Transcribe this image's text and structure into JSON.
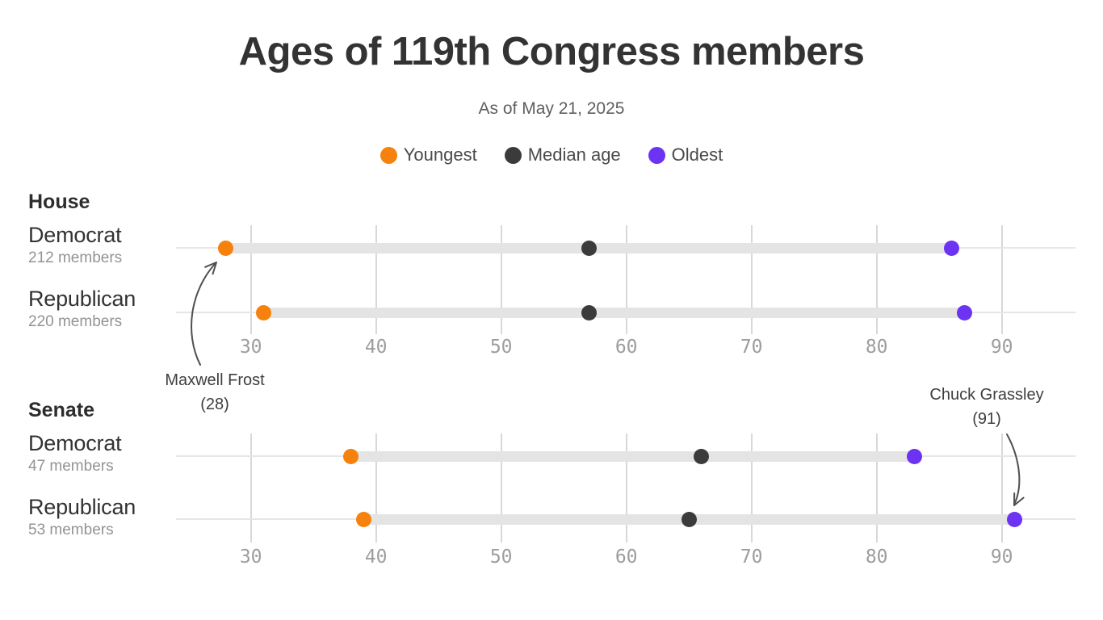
{
  "title": "Ages of 119th Congress members",
  "subtitle": "As of May 21, 2025",
  "legend": {
    "items": [
      {
        "label": "Youngest",
        "color": "#f6810c"
      },
      {
        "label": "Median age",
        "color": "#3b3b3b"
      },
      {
        "label": "Oldest",
        "color": "#6c33f2"
      }
    ]
  },
  "colors": {
    "youngest": "#f6810c",
    "median": "#3b3b3b",
    "oldest": "#6c33f2",
    "band": "#e4e4e4",
    "gridline": "#d8d8d8",
    "rowline": "#e6e6e6",
    "tick_text": "#9d9d9d",
    "arrow": "#4f4f4f"
  },
  "chart_data": {
    "type": "scatter",
    "variant": "dumbbell-range",
    "title": "Ages of 119th Congress members",
    "subtitle": "As of May 21, 2025",
    "legend_entries": [
      "Youngest",
      "Median age",
      "Oldest"
    ],
    "x_axis": {
      "ticks": [
        30,
        40,
        50,
        60,
        70,
        80,
        90
      ],
      "min": 24,
      "max": 96,
      "grid": true
    },
    "sections": [
      {
        "name": "House",
        "rows": [
          {
            "party": "Democrat",
            "members": "212 members",
            "youngest": 28,
            "median": 57,
            "oldest": 86
          },
          {
            "party": "Republican",
            "members": "220 members",
            "youngest": 31,
            "median": 57,
            "oldest": 87
          }
        ]
      },
      {
        "name": "Senate",
        "rows": [
          {
            "party": "Democrat",
            "members": "47 members",
            "youngest": 38,
            "median": 66,
            "oldest": 83
          },
          {
            "party": "Republican",
            "members": "53 members",
            "youngest": 39,
            "median": 65,
            "oldest": 91
          }
        ]
      }
    ],
    "annotations": [
      {
        "line1": "Maxwell Frost",
        "line2": "(28)",
        "section": "House",
        "row": "Democrat",
        "point": "youngest",
        "value": 28
      },
      {
        "line1": "Chuck Grassley",
        "line2": "(91)",
        "section": "Senate",
        "row": "Republican",
        "point": "oldest",
        "value": 91
      }
    ]
  }
}
